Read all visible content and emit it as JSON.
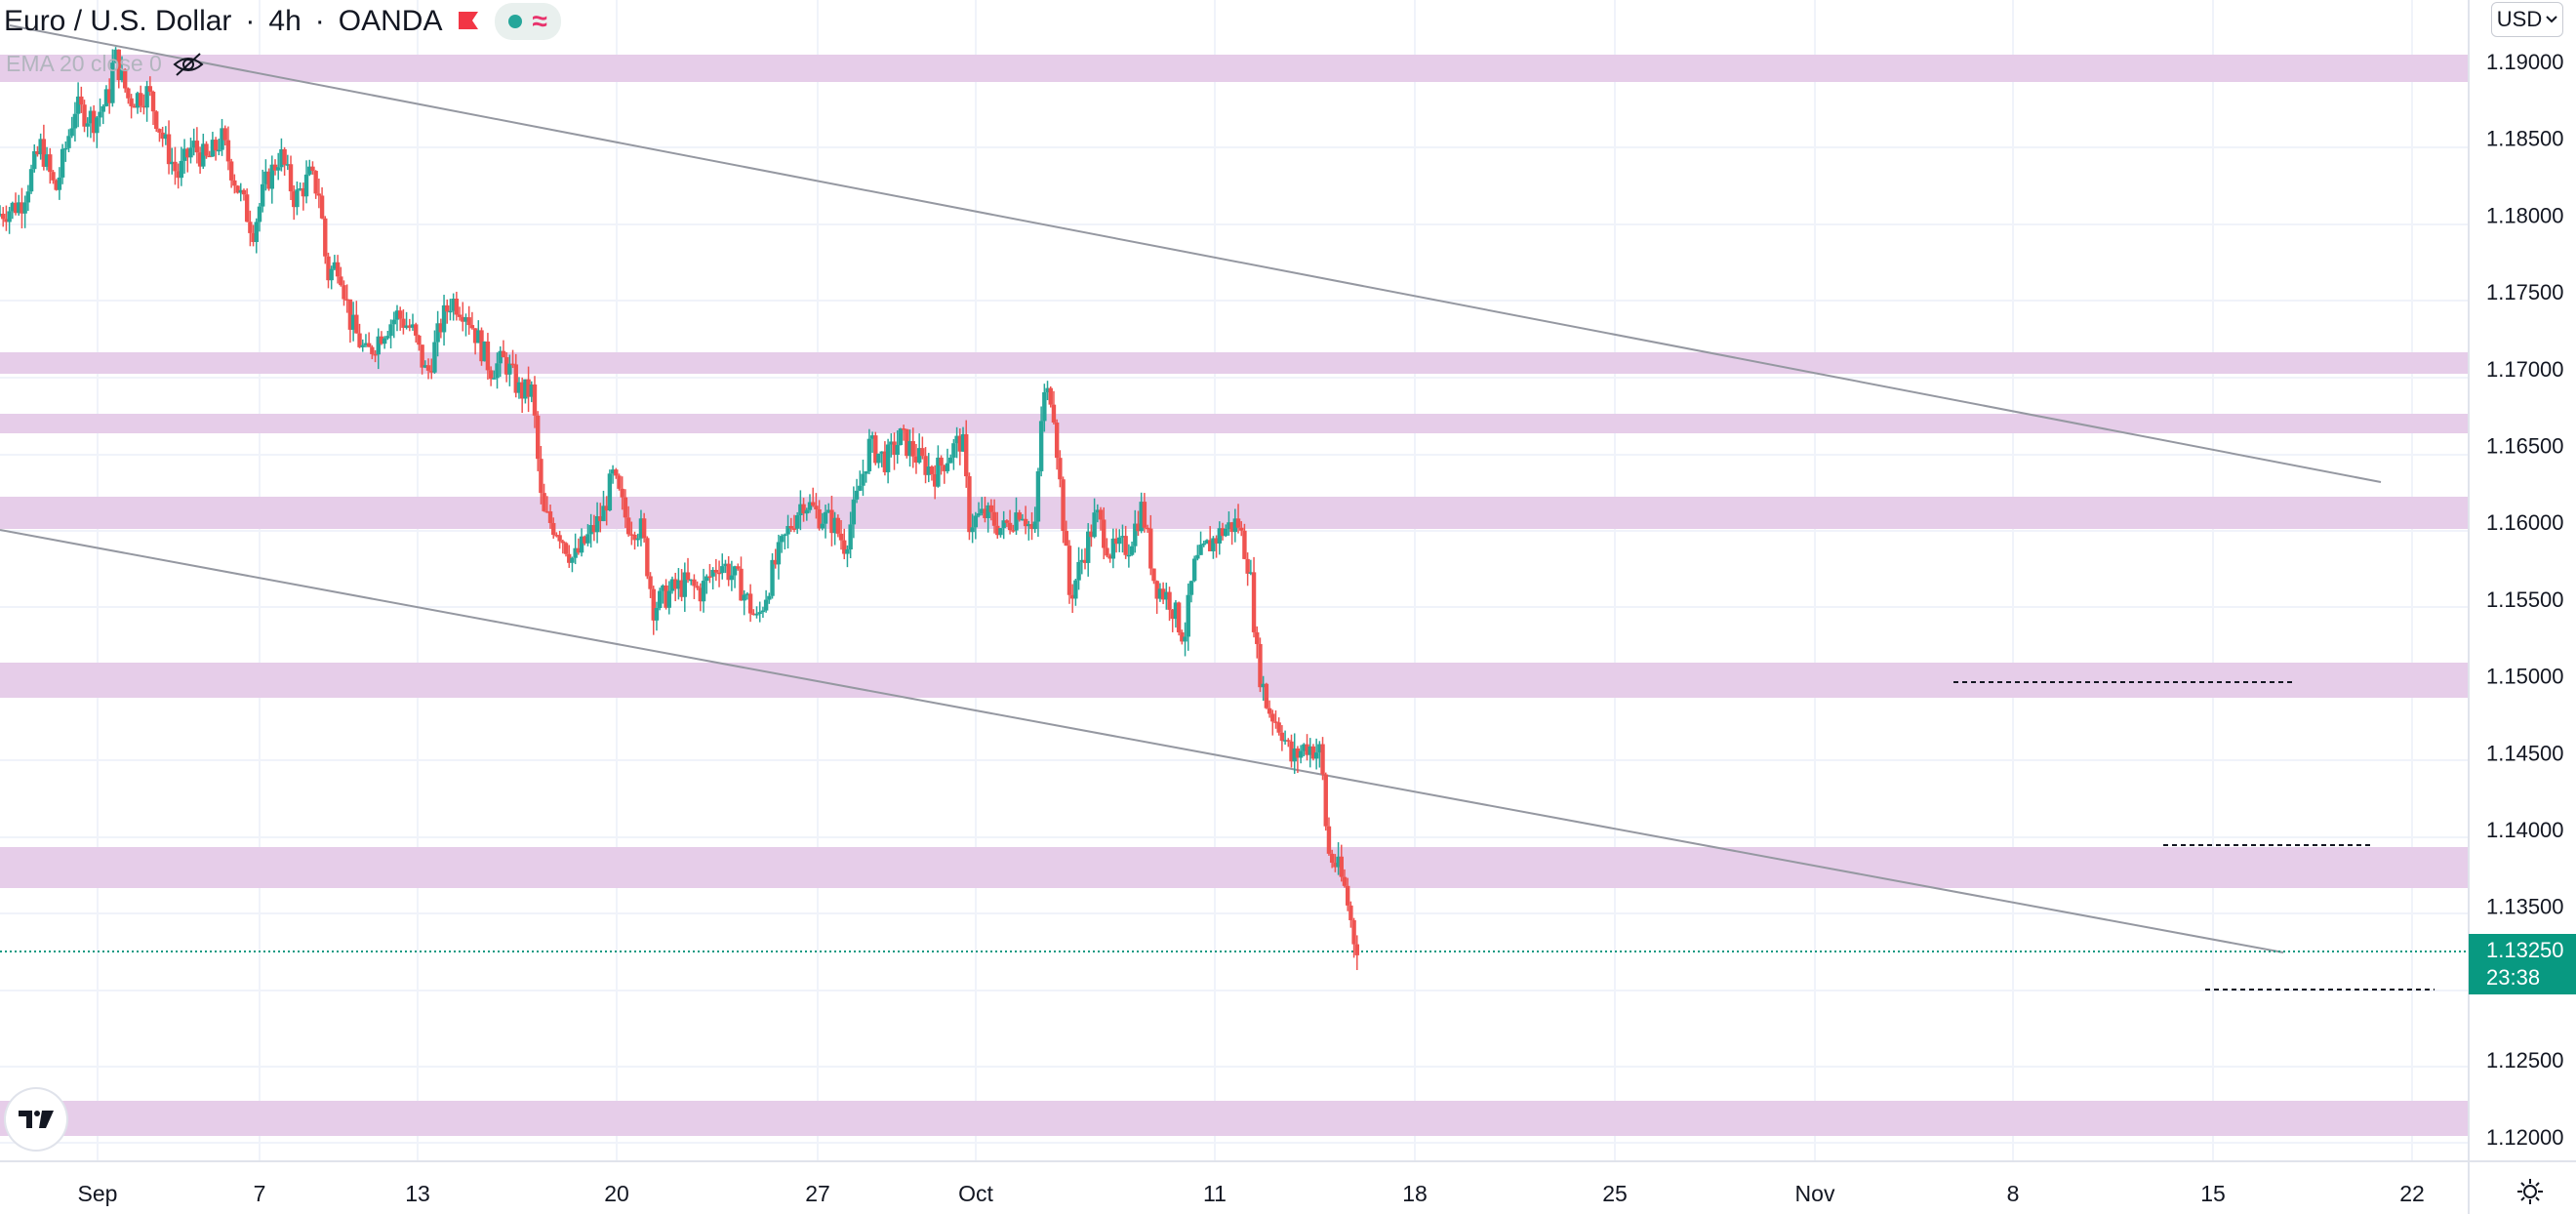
{
  "header": {
    "symbol": "Euro / U.S. Dollar",
    "interval": "4h",
    "broker": "OANDA"
  },
  "indicator_label": "EMA 20 close 0",
  "currency_button": "USD",
  "last_price": "1.13250",
  "countdown": "23:38",
  "colors": {
    "up": "#26a69a",
    "down": "#ef5350",
    "zone": "#e6cde9",
    "trendline": "#9598a1",
    "price_tag": "#089981"
  },
  "icons": [
    "flag-icon",
    "live-dot-icon",
    "waves-icon",
    "eye-hidden-icon",
    "chevron-down-icon",
    "tradingview-logo-icon",
    "settings-icon"
  ],
  "chart_data": {
    "type": "candlestick",
    "y_ticks": [
      "1.19000",
      "1.18500",
      "1.18000",
      "1.17500",
      "1.17000",
      "1.16500",
      "1.16000",
      "1.15500",
      "1.15000",
      "1.14500",
      "1.14000",
      "1.13500",
      "1.12500",
      "1.12000"
    ],
    "x_ticks": [
      "Sep",
      "7",
      "13",
      "20",
      "27",
      "Oct",
      "11",
      "18",
      "25",
      "Nov",
      "8",
      "15",
      "22"
    ],
    "ylim": [
      1.1184,
      1.194
    ],
    "price_path": [
      [
        0,
        1.18
      ],
      [
        25,
        1.1808
      ],
      [
        45,
        1.1845
      ],
      [
        60,
        1.1815
      ],
      [
        80,
        1.187
      ],
      [
        100,
        1.1862
      ],
      [
        115,
        1.1878
      ],
      [
        120,
        1.1905
      ],
      [
        135,
        1.1875
      ],
      [
        155,
        1.188
      ],
      [
        170,
        1.185
      ],
      [
        185,
        1.1825
      ],
      [
        200,
        1.1845
      ],
      [
        215,
        1.1835
      ],
      [
        230,
        1.185
      ],
      [
        245,
        1.182
      ],
      [
        262,
        1.179
      ],
      [
        275,
        1.182
      ],
      [
        290,
        1.184
      ],
      [
        305,
        1.181
      ],
      [
        320,
        1.1825
      ],
      [
        330,
        1.1815
      ],
      [
        338,
        1.176
      ],
      [
        350,
        1.177
      ],
      [
        362,
        1.173
      ],
      [
        378,
        1.1708
      ],
      [
        395,
        1.1725
      ],
      [
        410,
        1.1735
      ],
      [
        425,
        1.1725
      ],
      [
        440,
        1.1695
      ],
      [
        455,
        1.173
      ],
      [
        465,
        1.1745
      ],
      [
        480,
        1.1738
      ],
      [
        495,
        1.1715
      ],
      [
        505,
        1.17
      ],
      [
        520,
        1.1705
      ],
      [
        535,
        1.1685
      ],
      [
        548,
        1.1685
      ],
      [
        558,
        1.1605
      ],
      [
        575,
        1.1595
      ],
      [
        590,
        1.1575
      ],
      [
        605,
        1.159
      ],
      [
        620,
        1.1605
      ],
      [
        630,
        1.163
      ],
      [
        645,
        1.16
      ],
      [
        660,
        1.1595
      ],
      [
        672,
        1.1545
      ],
      [
        690,
        1.1555
      ],
      [
        705,
        1.156
      ],
      [
        720,
        1.1555
      ],
      [
        740,
        1.1575
      ],
      [
        760,
        1.156
      ],
      [
        778,
        1.1535
      ],
      [
        795,
        1.157
      ],
      [
        810,
        1.1595
      ],
      [
        825,
        1.1615
      ],
      [
        840,
        1.1605
      ],
      [
        855,
        1.16
      ],
      [
        868,
        1.1585
      ],
      [
        880,
        1.1615
      ],
      [
        893,
        1.165
      ],
      [
        910,
        1.164
      ],
      [
        925,
        1.1655
      ],
      [
        945,
        1.164
      ],
      [
        960,
        1.1632
      ],
      [
        975,
        1.1645
      ],
      [
        988,
        1.1655
      ],
      [
        995,
        1.16
      ],
      [
        1012,
        1.1605
      ],
      [
        1030,
        1.1595
      ],
      [
        1048,
        1.161
      ],
      [
        1062,
        1.159
      ],
      [
        1070,
        1.168
      ],
      [
        1080,
        1.1685
      ],
      [
        1090,
        1.161
      ],
      [
        1098,
        1.155
      ],
      [
        1110,
        1.1575
      ],
      [
        1125,
        1.1605
      ],
      [
        1140,
        1.158
      ],
      [
        1158,
        1.1585
      ],
      [
        1172,
        1.161
      ],
      [
        1185,
        1.156
      ],
      [
        1200,
        1.155
      ],
      [
        1215,
        1.1525
      ],
      [
        1225,
        1.157
      ],
      [
        1240,
        1.1585
      ],
      [
        1255,
        1.1595
      ],
      [
        1270,
        1.16
      ],
      [
        1282,
        1.157
      ],
      [
        1290,
        1.151
      ],
      [
        1300,
        1.148
      ],
      [
        1315,
        1.1465
      ],
      [
        1325,
        1.1445
      ],
      [
        1340,
        1.1455
      ],
      [
        1355,
        1.145
      ],
      [
        1362,
        1.1385
      ],
      [
        1372,
        1.1375
      ],
      [
        1380,
        1.136
      ],
      [
        1390,
        1.1325
      ]
    ]
  }
}
